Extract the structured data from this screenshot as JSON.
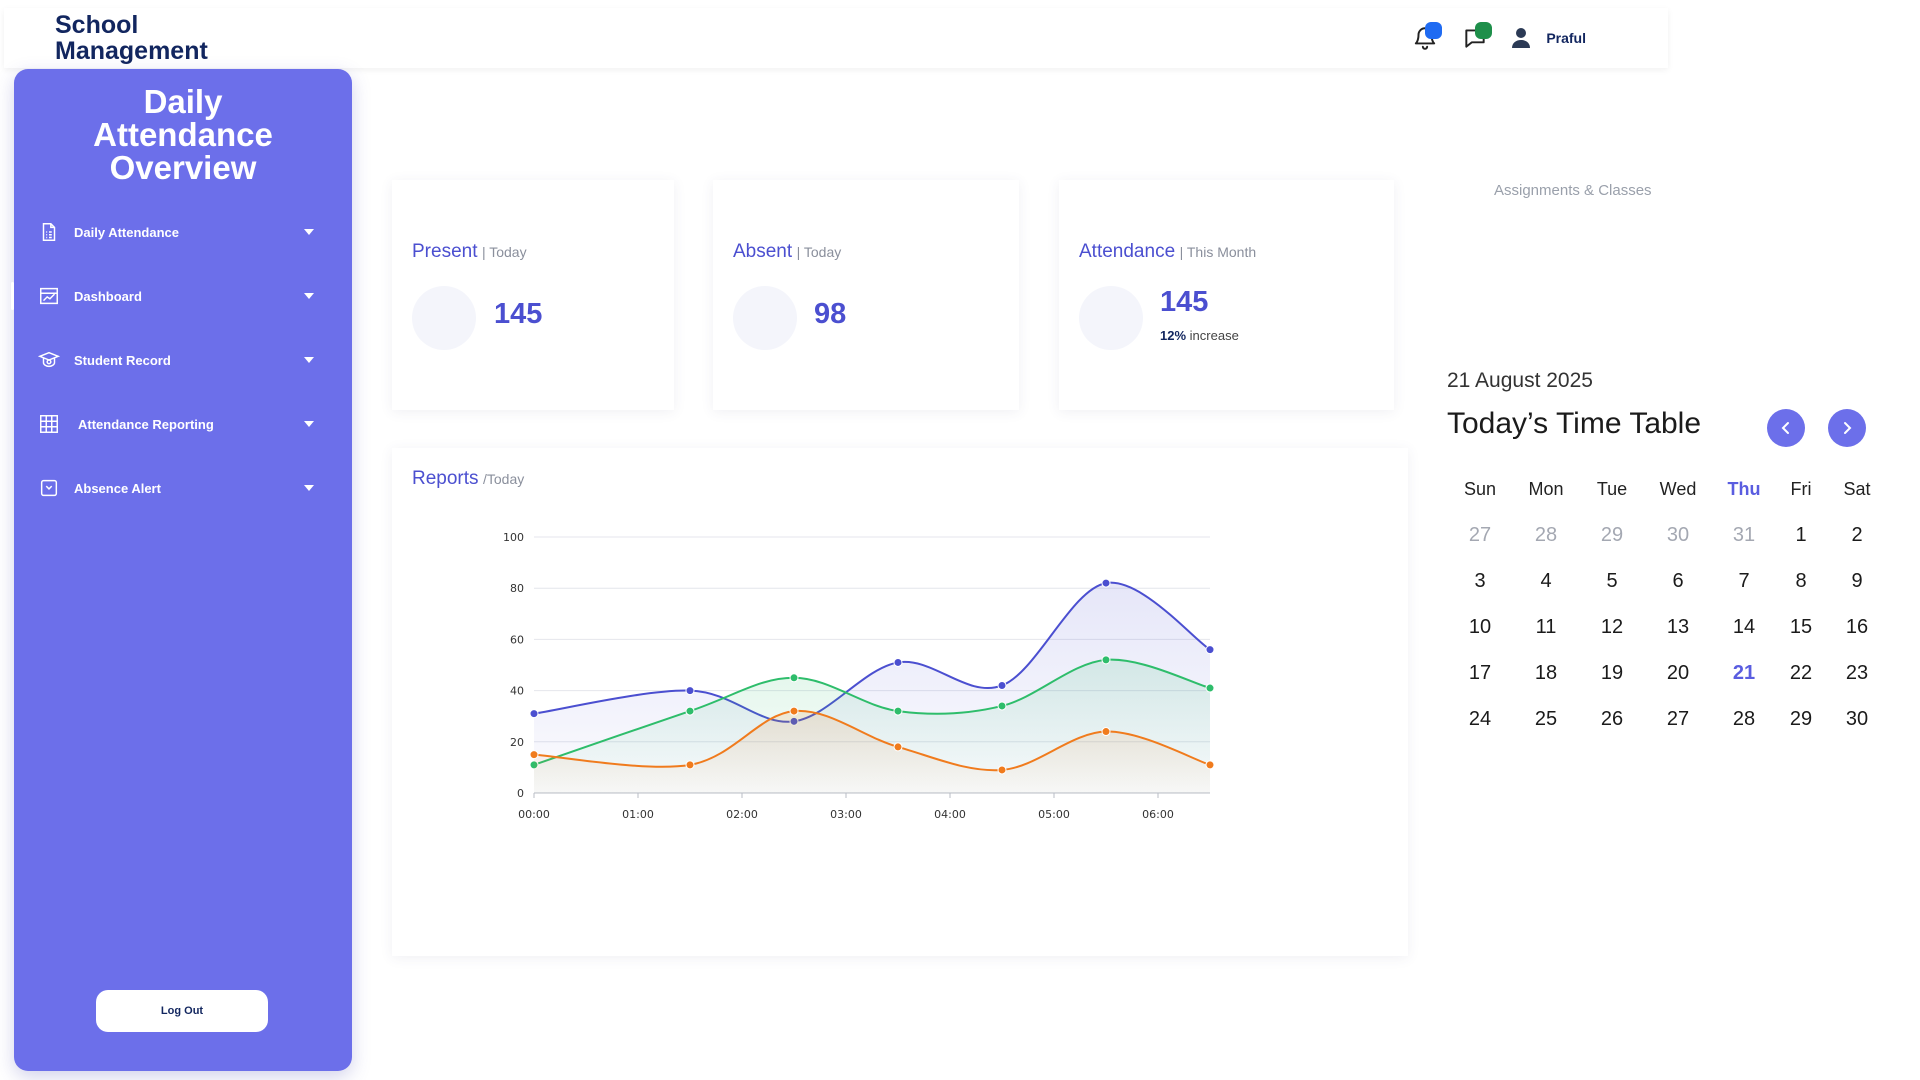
{
  "header": {
    "brand": "School Management",
    "user_name": "Praful",
    "bell_dot_color": "#1f6bf2",
    "chat_dot_color": "#1e8f4a"
  },
  "sidebar": {
    "title": "Daily Attendance Overview",
    "items": [
      {
        "label": "Daily Attendance",
        "icon": "document-icon"
      },
      {
        "label": "Dashboard",
        "icon": "chart-board-icon",
        "active": true
      },
      {
        "label": "Student Record",
        "icon": "graduation-cap-icon"
      },
      {
        "label": "Attendance Reporting",
        "icon": "grid-table-icon"
      },
      {
        "label": "Absence Alert",
        "icon": "calendar-alert-icon"
      }
    ],
    "logout_label": "Log Out",
    "color": "#6c6fea"
  },
  "stats": {
    "present": {
      "title": "Present",
      "subtitle": "| Today",
      "value": "145"
    },
    "absent": {
      "title": "Absent",
      "subtitle": "| Today",
      "value": "98"
    },
    "attendance": {
      "title": "Attendance",
      "subtitle": "| This Month",
      "value": "145",
      "increase_pct": "12%",
      "increase_text": "increase"
    }
  },
  "reports": {
    "title": "Reports",
    "subtitle": "/Today"
  },
  "chart_data": {
    "type": "area",
    "x": [
      "00:00",
      "01:30",
      "02:30",
      "03:30",
      "04:30",
      "05:30",
      "06:30"
    ],
    "x_ticks": [
      "00:00",
      "01:00",
      "02:00",
      "03:00",
      "04:00",
      "05:00",
      "06:00"
    ],
    "y_ticks": [
      "0",
      "20",
      "40",
      "60",
      "80",
      "100"
    ],
    "ylim": [
      0,
      100
    ],
    "grid": true,
    "series": [
      {
        "color": "#4b4fd0",
        "values": [
          31,
          40,
          28,
          51,
          42,
          82,
          56
        ]
      },
      {
        "color": "#2ebd6b",
        "values": [
          11,
          32,
          45,
          32,
          34,
          52,
          41
        ]
      },
      {
        "color": "#f07b1d",
        "values": [
          15,
          11,
          32,
          18,
          9,
          24,
          11
        ]
      }
    ]
  },
  "timetable": {
    "assignments_label": "Assignments & Classes",
    "date": "21 August 2025",
    "title": "Today’s Time Table",
    "weekdays": [
      "Sun",
      "Mon",
      "Tue",
      "Wed",
      "Thu",
      "Fri",
      "Sat"
    ],
    "today_weekday_index": 4,
    "weeks": [
      [
        "27",
        "28",
        "29",
        "30",
        "31",
        "1",
        "2"
      ],
      [
        "3",
        "4",
        "5",
        "6",
        "7",
        "8",
        "9"
      ],
      [
        "10",
        "11",
        "12",
        "13",
        "14",
        "15",
        "16"
      ],
      [
        "17",
        "18",
        "19",
        "20",
        "21",
        "22",
        "23"
      ],
      [
        "24",
        "25",
        "26",
        "27",
        "28",
        "29",
        "30"
      ]
    ],
    "muted_first_row_count": 5,
    "today": "21"
  }
}
